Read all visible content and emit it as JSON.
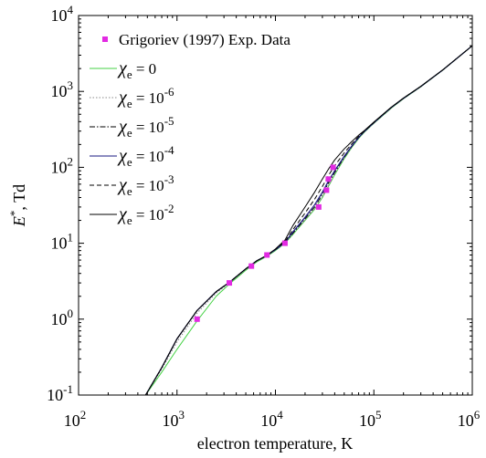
{
  "chart_data": {
    "type": "line",
    "xscale": "log",
    "yscale": "log",
    "xlim": [
      100,
      1000000
    ],
    "ylim": [
      0.1,
      10000
    ],
    "x_ticks": [
      {
        "base": "10",
        "exp": "2"
      },
      {
        "base": "10",
        "exp": "3"
      },
      {
        "base": "10",
        "exp": "4"
      },
      {
        "base": "10",
        "exp": "5"
      },
      {
        "base": "10",
        "exp": "6"
      }
    ],
    "y_ticks": [
      {
        "base": "10",
        "exp": "-1"
      },
      {
        "base": "10",
        "exp": "0"
      },
      {
        "base": "10",
        "exp": "1"
      },
      {
        "base": "10",
        "exp": "2"
      },
      {
        "base": "10",
        "exp": "3"
      },
      {
        "base": "10",
        "exp": "4"
      }
    ],
    "xlabel": "electron temperature, K",
    "ylabel": {
      "main": "E",
      "sup": "*",
      "rest": ", Td"
    },
    "grid": false,
    "legend_position": "top-left",
    "colors": {
      "marker": "#e22ae2",
      "chi0": "#44d244",
      "chi1e6": "#888888",
      "chi1e5": "#000000",
      "chi1e4": "#1a1a80",
      "chi1e3": "#000000",
      "chi1e2": "#000000"
    },
    "legend": [
      {
        "key": "marker",
        "kind": "marker",
        "text": "Grigoriev (1997) Exp. Data"
      },
      {
        "key": "chi0",
        "kind": "line",
        "dash": "",
        "chi": "χ",
        "sub": "e",
        "eq": " = 0",
        "sup": ""
      },
      {
        "key": "chi1e6",
        "kind": "line",
        "dash": "1.5 2",
        "chi": "χ",
        "sub": "e",
        "eq": " = 10",
        "sup": "-6"
      },
      {
        "key": "chi1e5",
        "kind": "line",
        "dash": "6 2 1.5 2",
        "chi": "χ",
        "sub": "e",
        "eq": " = 10",
        "sup": "-5"
      },
      {
        "key": "chi1e4",
        "kind": "line",
        "dash": "",
        "chi": "χ",
        "sub": "e",
        "eq": " = 10",
        "sup": "-4"
      },
      {
        "key": "chi1e3",
        "kind": "line",
        "dash": "5 3",
        "chi": "χ",
        "sub": "e",
        "eq": " = 10",
        "sup": "-3"
      },
      {
        "key": "chi1e2",
        "kind": "line",
        "dash": "",
        "chi": "χ",
        "sub": "e",
        "eq": " = 10",
        "sup": "-2"
      }
    ],
    "experimental": {
      "name": "Grigoriev (1997) Exp. Data",
      "x": [
        1600,
        3400,
        5700,
        8200,
        12500,
        27500,
        33000,
        34500,
        38500
      ],
      "y": [
        1.0,
        3.0,
        5.0,
        7.0,
        10.0,
        30.0,
        50.0,
        70.0,
        100.0
      ]
    },
    "series": [
      {
        "key": "chi0",
        "x": [
          480,
          700,
          1000,
          1600,
          2500,
          3400,
          5000,
          6500,
          8000,
          10000,
          12500,
          15000,
          20000,
          25000,
          30000,
          35000,
          40000,
          50000,
          60000,
          70000,
          80000,
          100000,
          150000,
          200000,
          300000,
          500000,
          1000000
        ],
        "y": [
          0.1,
          0.2,
          0.4,
          0.95,
          2.0,
          2.9,
          4.4,
          5.7,
          6.6,
          8.0,
          10.0,
          13.0,
          20.0,
          28.0,
          40.0,
          58.0,
          80.0,
          130.0,
          185.0,
          240.0,
          290.0,
          380.0,
          600.0,
          800.0,
          1150.0,
          1900.0,
          4000.0
        ]
      },
      {
        "key": "chi1e6",
        "x": [
          480,
          700,
          1000,
          1600,
          2500,
          3400,
          5000,
          6500,
          8000,
          10000,
          12500,
          15000,
          20000,
          25000,
          30000,
          35000,
          40000,
          50000,
          60000,
          70000,
          80000,
          100000,
          150000,
          200000,
          300000,
          500000,
          1000000
        ],
        "y": [
          0.1,
          0.22,
          0.5,
          1.2,
          2.2,
          3.0,
          4.5,
          5.8,
          6.7,
          8.1,
          10.1,
          13.2,
          20.2,
          28.5,
          41.0,
          60.0,
          82.0,
          132.0,
          187.0,
          242.0,
          292.0,
          382.0,
          605.0,
          805.0,
          1155.0,
          1905.0,
          4000.0
        ]
      },
      {
        "key": "chi1e5",
        "x": [
          480,
          700,
          1000,
          1600,
          2500,
          3400,
          5000,
          6500,
          8000,
          10000,
          12500,
          15000,
          20000,
          25000,
          30000,
          35000,
          40000,
          50000,
          60000,
          70000,
          80000,
          100000,
          150000,
          200000,
          300000,
          500000,
          1000000
        ],
        "y": [
          0.1,
          0.23,
          0.55,
          1.3,
          2.3,
          3.05,
          4.6,
          5.9,
          6.8,
          8.2,
          10.2,
          13.5,
          21.0,
          30.0,
          44.0,
          64.0,
          86.0,
          136.0,
          190.0,
          245.0,
          295.0,
          385.0,
          610.0,
          810.0,
          1160.0,
          1910.0,
          4000.0
        ]
      },
      {
        "key": "chi1e4",
        "x": [
          480,
          700,
          1000,
          1600,
          2500,
          3400,
          5000,
          6500,
          8000,
          10000,
          12500,
          15000,
          20000,
          25000,
          30000,
          35000,
          40000,
          50000,
          60000,
          70000,
          80000,
          100000,
          150000,
          200000,
          300000,
          500000,
          1000000
        ],
        "y": [
          0.1,
          0.23,
          0.55,
          1.3,
          2.3,
          3.05,
          4.6,
          5.9,
          6.8,
          8.2,
          10.3,
          14.0,
          22.0,
          32.0,
          47.0,
          68.0,
          90.0,
          140.0,
          193.0,
          248.0,
          297.0,
          387.0,
          612.0,
          812.0,
          1162.0,
          1912.0,
          4000.0
        ]
      },
      {
        "key": "chi1e3",
        "x": [
          480,
          700,
          1000,
          1600,
          2500,
          3400,
          5000,
          6500,
          8000,
          10000,
          12500,
          15000,
          20000,
          25000,
          30000,
          35000,
          40000,
          50000,
          60000,
          70000,
          80000,
          100000,
          150000,
          200000,
          300000,
          500000,
          1000000
        ],
        "y": [
          0.1,
          0.23,
          0.55,
          1.3,
          2.3,
          3.05,
          4.6,
          5.9,
          6.8,
          8.3,
          10.5,
          15.0,
          25.0,
          38.0,
          56.0,
          80.0,
          105.0,
          155.0,
          205.0,
          255.0,
          300.0,
          390.0,
          615.0,
          815.0,
          1165.0,
          1915.0,
          4000.0
        ]
      },
      {
        "key": "chi1e2",
        "x": [
          480,
          700,
          1000,
          1600,
          2500,
          3400,
          5000,
          6500,
          8000,
          10000,
          12500,
          15000,
          20000,
          25000,
          30000,
          35000,
          40000,
          50000,
          60000,
          70000,
          80000,
          100000,
          150000,
          200000,
          300000,
          500000,
          1000000
        ],
        "y": [
          0.1,
          0.23,
          0.55,
          1.3,
          2.3,
          3.05,
          4.6,
          5.9,
          6.8,
          8.4,
          11.0,
          17.0,
          30.0,
          47.0,
          70.0,
          97.0,
          125.0,
          175.0,
          220.0,
          265.0,
          305.0,
          395.0,
          620.0,
          820.0,
          1170.0,
          1920.0,
          4000.0
        ]
      }
    ]
  }
}
